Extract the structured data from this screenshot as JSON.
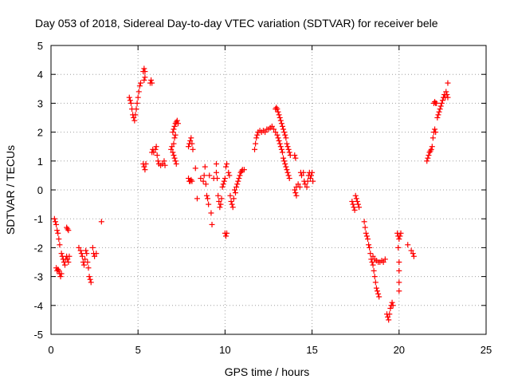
{
  "chart_data": {
    "type": "scatter",
    "title": "Day 053 of 2018, Sidereal Day-to-day VTEC variation (SDTVAR) for receiver bele",
    "xlabel": "GPS time / hours",
    "ylabel": "SDTVAR / TECUs",
    "xlim": [
      0,
      25
    ],
    "ylim": [
      -5,
      5
    ],
    "xticks": [
      0,
      5,
      10,
      15,
      20,
      25
    ],
    "yticks": [
      -5,
      -4,
      -3,
      -2,
      -1,
      0,
      1,
      2,
      3,
      4,
      5
    ],
    "grid": true,
    "marker": "+",
    "marker_color": "#ff0000",
    "series": [
      {
        "name": "SDTVAR",
        "points": [
          [
            0.2,
            -1.0
          ],
          [
            0.25,
            -1.1
          ],
          [
            0.3,
            -1.2
          ],
          [
            0.35,
            -1.4
          ],
          [
            0.4,
            -1.5
          ],
          [
            0.45,
            -1.7
          ],
          [
            0.5,
            -1.9
          ],
          [
            0.3,
            -2.7
          ],
          [
            0.35,
            -2.8
          ],
          [
            0.4,
            -2.75
          ],
          [
            0.45,
            -2.8
          ],
          [
            0.5,
            -2.9
          ],
          [
            0.55,
            -3.0
          ],
          [
            0.6,
            -2.9
          ],
          [
            0.6,
            -2.2
          ],
          [
            0.65,
            -2.3
          ],
          [
            0.7,
            -2.4
          ],
          [
            0.75,
            -2.5
          ],
          [
            0.8,
            -2.6
          ],
          [
            0.85,
            -2.4
          ],
          [
            0.9,
            -1.3
          ],
          [
            0.95,
            -1.35
          ],
          [
            1.0,
            -1.4
          ],
          [
            0.9,
            -2.3
          ],
          [
            0.95,
            -2.4
          ],
          [
            1.0,
            -2.5
          ],
          [
            1.05,
            -2.3
          ],
          [
            1.6,
            -2.0
          ],
          [
            1.7,
            -2.1
          ],
          [
            1.75,
            -2.2
          ],
          [
            1.8,
            -2.3
          ],
          [
            1.85,
            -2.5
          ],
          [
            1.9,
            -2.6
          ],
          [
            1.95,
            -2.4
          ],
          [
            2.0,
            -2.1
          ],
          [
            2.05,
            -2.2
          ],
          [
            2.1,
            -2.5
          ],
          [
            2.15,
            -2.7
          ],
          [
            2.2,
            -3.0
          ],
          [
            2.25,
            -3.1
          ],
          [
            2.3,
            -3.2
          ],
          [
            2.4,
            -2.0
          ],
          [
            2.45,
            -2.2
          ],
          [
            2.5,
            -2.3
          ],
          [
            2.6,
            -2.2
          ],
          [
            2.9,
            -1.1
          ],
          [
            4.5,
            3.2
          ],
          [
            4.55,
            3.1
          ],
          [
            4.6,
            3.0
          ],
          [
            4.65,
            2.8
          ],
          [
            4.7,
            2.6
          ],
          [
            4.75,
            2.5
          ],
          [
            4.8,
            2.4
          ],
          [
            4.85,
            2.6
          ],
          [
            4.9,
            2.8
          ],
          [
            4.95,
            3.0
          ],
          [
            5.0,
            3.2
          ],
          [
            5.05,
            3.4
          ],
          [
            5.1,
            3.6
          ],
          [
            5.15,
            3.7
          ],
          [
            5.3,
            4.1
          ],
          [
            5.35,
            4.2
          ],
          [
            5.4,
            4.1
          ],
          [
            5.35,
            3.8
          ],
          [
            5.4,
            3.9
          ],
          [
            5.3,
            0.9
          ],
          [
            5.35,
            0.8
          ],
          [
            5.4,
            0.7
          ],
          [
            5.45,
            0.9
          ],
          [
            5.7,
            3.7
          ],
          [
            5.75,
            3.8
          ],
          [
            5.8,
            3.7
          ],
          [
            5.8,
            1.3
          ],
          [
            5.85,
            1.4
          ],
          [
            5.9,
            1.3
          ],
          [
            6.0,
            1.4
          ],
          [
            6.05,
            1.5
          ],
          [
            6.1,
            1.2
          ],
          [
            6.15,
            1.0
          ],
          [
            6.2,
            0.9
          ],
          [
            6.3,
            0.85
          ],
          [
            6.4,
            0.9
          ],
          [
            6.5,
            1.0
          ],
          [
            6.55,
            0.85
          ],
          [
            6.9,
            1.4
          ],
          [
            6.95,
            1.5
          ],
          [
            7.0,
            1.3
          ],
          [
            7.05,
            1.2
          ],
          [
            7.1,
            1.1
          ],
          [
            7.15,
            1.0
          ],
          [
            7.2,
            0.9
          ],
          [
            7.0,
            2.0
          ],
          [
            7.05,
            2.1
          ],
          [
            7.1,
            2.2
          ],
          [
            7.15,
            2.3
          ],
          [
            7.2,
            2.35
          ],
          [
            7.25,
            2.4
          ],
          [
            7.3,
            2.3
          ],
          [
            7.05,
            1.6
          ],
          [
            7.1,
            1.8
          ],
          [
            7.15,
            1.9
          ],
          [
            7.9,
            1.5
          ],
          [
            7.95,
            1.6
          ],
          [
            8.0,
            1.7
          ],
          [
            8.05,
            1.8
          ],
          [
            8.1,
            1.6
          ],
          [
            8.15,
            1.4
          ],
          [
            7.9,
            0.4
          ],
          [
            7.95,
            0.3
          ],
          [
            8.0,
            0.3
          ],
          [
            8.05,
            0.35
          ],
          [
            8.1,
            0.3
          ],
          [
            8.3,
            0.75
          ],
          [
            8.4,
            -0.3
          ],
          [
            8.6,
            0.4
          ],
          [
            8.75,
            0.3
          ],
          [
            8.8,
            0.5
          ],
          [
            8.85,
            0.8
          ],
          [
            8.9,
            0.2
          ],
          [
            8.95,
            -0.2
          ],
          [
            9.0,
            -0.3
          ],
          [
            9.05,
            -0.5
          ],
          [
            9.1,
            0.5
          ],
          [
            9.2,
            -0.8
          ],
          [
            9.25,
            -1.2
          ],
          [
            9.35,
            0.4
          ],
          [
            9.5,
            0.9
          ],
          [
            9.5,
            0.6
          ],
          [
            9.55,
            0.4
          ],
          [
            9.6,
            -0.2
          ],
          [
            9.65,
            -0.4
          ],
          [
            9.7,
            -0.6
          ],
          [
            9.75,
            -0.5
          ],
          [
            9.8,
            -0.3
          ],
          [
            9.85,
            0.1
          ],
          [
            9.9,
            0.2
          ],
          [
            9.95,
            0.3
          ],
          [
            10.0,
            0.4
          ],
          [
            10.0,
            -1.5
          ],
          [
            10.05,
            -1.6
          ],
          [
            10.1,
            -1.5
          ],
          [
            10.05,
            0.8
          ],
          [
            10.1,
            0.9
          ],
          [
            10.2,
            0.6
          ],
          [
            10.25,
            0.5
          ],
          [
            10.3,
            -0.2
          ],
          [
            10.35,
            -0.4
          ],
          [
            10.4,
            -0.5
          ],
          [
            10.45,
            -0.6
          ],
          [
            10.5,
            -0.3
          ],
          [
            10.55,
            0.0
          ],
          [
            10.6,
            -0.1
          ],
          [
            10.65,
            0.1
          ],
          [
            10.7,
            0.2
          ],
          [
            10.75,
            0.3
          ],
          [
            10.8,
            0.4
          ],
          [
            10.85,
            0.5
          ],
          [
            10.9,
            0.6
          ],
          [
            10.95,
            0.65
          ],
          [
            11.0,
            0.7
          ],
          [
            11.1,
            0.7
          ],
          [
            11.7,
            1.4
          ],
          [
            11.75,
            1.6
          ],
          [
            11.8,
            1.8
          ],
          [
            11.85,
            1.9
          ],
          [
            11.9,
            2.0
          ],
          [
            12.0,
            2.05
          ],
          [
            12.1,
            2.0
          ],
          [
            12.2,
            2.05
          ],
          [
            12.3,
            2.0
          ],
          [
            12.4,
            2.1
          ],
          [
            12.5,
            2.1
          ],
          [
            12.6,
            2.15
          ],
          [
            12.7,
            2.2
          ],
          [
            12.8,
            2.1
          ],
          [
            12.9,
            2.0
          ],
          [
            13.0,
            1.9
          ],
          [
            13.05,
            1.8
          ],
          [
            13.1,
            1.7
          ],
          [
            13.15,
            1.6
          ],
          [
            13.2,
            1.5
          ],
          [
            13.25,
            1.4
          ],
          [
            13.3,
            1.3
          ],
          [
            13.35,
            1.1
          ],
          [
            13.4,
            1.0
          ],
          [
            13.45,
            0.9
          ],
          [
            13.5,
            0.8
          ],
          [
            13.55,
            0.7
          ],
          [
            13.6,
            0.6
          ],
          [
            13.65,
            0.5
          ],
          [
            13.7,
            0.4
          ],
          [
            12.9,
            2.8
          ],
          [
            12.95,
            2.85
          ],
          [
            13.0,
            2.8
          ],
          [
            13.05,
            2.7
          ],
          [
            13.1,
            2.6
          ],
          [
            13.15,
            2.5
          ],
          [
            13.2,
            2.4
          ],
          [
            13.25,
            2.3
          ],
          [
            13.3,
            2.2
          ],
          [
            13.35,
            2.1
          ],
          [
            13.4,
            2.0
          ],
          [
            13.45,
            1.9
          ],
          [
            13.5,
            1.8
          ],
          [
            13.55,
            1.6
          ],
          [
            13.6,
            1.5
          ],
          [
            13.65,
            1.4
          ],
          [
            13.7,
            1.3
          ],
          [
            13.75,
            1.2
          ],
          [
            14.0,
            0.0
          ],
          [
            14.05,
            -0.1
          ],
          [
            14.1,
            -0.2
          ],
          [
            14.0,
            1.2
          ],
          [
            14.05,
            1.1
          ],
          [
            14.1,
            0.1
          ],
          [
            14.2,
            0.2
          ],
          [
            14.3,
            0.1
          ],
          [
            14.35,
            0.6
          ],
          [
            14.4,
            0.5
          ],
          [
            14.5,
            0.6
          ],
          [
            14.55,
            0.3
          ],
          [
            14.6,
            0.2
          ],
          [
            14.7,
            0.1
          ],
          [
            14.75,
            0.3
          ],
          [
            14.8,
            0.5
          ],
          [
            14.85,
            0.6
          ],
          [
            14.9,
            0.4
          ],
          [
            14.95,
            0.5
          ],
          [
            15.0,
            0.6
          ],
          [
            15.05,
            0.3
          ],
          [
            17.3,
            -0.4
          ],
          [
            17.35,
            -0.5
          ],
          [
            17.4,
            -0.6
          ],
          [
            17.45,
            -0.7
          ],
          [
            17.5,
            -0.2
          ],
          [
            17.55,
            -0.3
          ],
          [
            17.6,
            -0.4
          ],
          [
            17.65,
            -0.5
          ],
          [
            17.7,
            -0.6
          ],
          [
            18.0,
            -1.1
          ],
          [
            18.05,
            -1.3
          ],
          [
            18.1,
            -1.5
          ],
          [
            18.15,
            -1.6
          ],
          [
            18.2,
            -1.7
          ],
          [
            18.25,
            -1.9
          ],
          [
            18.3,
            -2.0
          ],
          [
            18.35,
            -2.2
          ],
          [
            18.4,
            -2.4
          ],
          [
            18.45,
            -2.5
          ],
          [
            18.5,
            -2.6
          ],
          [
            18.55,
            -2.8
          ],
          [
            18.6,
            -3.0
          ],
          [
            18.65,
            -3.2
          ],
          [
            18.7,
            -3.4
          ],
          [
            18.75,
            -3.5
          ],
          [
            18.8,
            -3.6
          ],
          [
            18.85,
            -3.7
          ],
          [
            18.5,
            -2.3
          ],
          [
            18.6,
            -2.4
          ],
          [
            18.7,
            -2.45
          ],
          [
            18.8,
            -2.5
          ],
          [
            18.9,
            -2.5
          ],
          [
            19.0,
            -2.45
          ],
          [
            19.1,
            -2.5
          ],
          [
            19.2,
            -2.4
          ],
          [
            19.3,
            -4.3
          ],
          [
            19.35,
            -4.4
          ],
          [
            19.4,
            -4.5
          ],
          [
            19.45,
            -4.3
          ],
          [
            19.5,
            -4.1
          ],
          [
            19.55,
            -4.0
          ],
          [
            19.6,
            -3.9
          ],
          [
            19.65,
            -4.0
          ],
          [
            19.9,
            -1.5
          ],
          [
            19.95,
            -1.6
          ],
          [
            20.0,
            -1.7
          ],
          [
            20.05,
            -1.6
          ],
          [
            20.1,
            -1.5
          ],
          [
            19.95,
            -2.0
          ],
          [
            20.0,
            -2.5
          ],
          [
            20.0,
            -2.8
          ],
          [
            20.0,
            -3.5
          ],
          [
            20.0,
            -3.2
          ],
          [
            20.5,
            -1.9
          ],
          [
            20.7,
            -2.1
          ],
          [
            20.8,
            -2.2
          ],
          [
            20.85,
            -2.3
          ],
          [
            21.6,
            1.0
          ],
          [
            21.65,
            1.1
          ],
          [
            21.7,
            1.2
          ],
          [
            21.75,
            1.3
          ],
          [
            21.8,
            1.35
          ],
          [
            21.85,
            1.4
          ],
          [
            21.9,
            1.5
          ],
          [
            21.95,
            1.8
          ],
          [
            22.0,
            2.0
          ],
          [
            22.05,
            2.1
          ],
          [
            22.1,
            2.0
          ],
          [
            22.0,
            3.0
          ],
          [
            22.05,
            3.05
          ],
          [
            22.1,
            3.0
          ],
          [
            22.15,
            3.0
          ],
          [
            22.2,
            2.5
          ],
          [
            22.25,
            2.6
          ],
          [
            22.3,
            2.7
          ],
          [
            22.35,
            2.8
          ],
          [
            22.4,
            2.9
          ],
          [
            22.45,
            3.0
          ],
          [
            22.5,
            3.1
          ],
          [
            22.55,
            3.2
          ],
          [
            22.6,
            3.3
          ],
          [
            22.65,
            3.2
          ],
          [
            22.7,
            3.4
          ],
          [
            22.75,
            3.3
          ],
          [
            22.8,
            3.2
          ],
          [
            22.8,
            3.7
          ]
        ]
      }
    ]
  }
}
